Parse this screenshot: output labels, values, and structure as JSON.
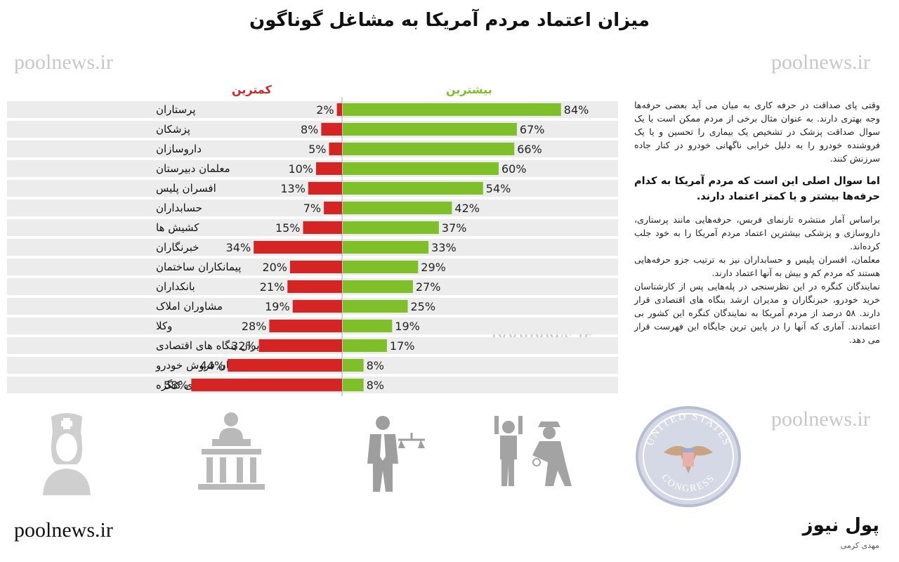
{
  "title": "میزان اعتماد مردم آمریکا به مشاغل گوناگون",
  "watermark": "poolnews.ir",
  "footer": {
    "site": "poolnews.ir",
    "brand": "پول نیوز",
    "author": "مهدی کرمی"
  },
  "colors": {
    "most": "#7fbf2a",
    "least": "#d42424",
    "row_band": "#ececec"
  },
  "chart_data": {
    "type": "bar",
    "legend": {
      "most": "بیشترین",
      "least": "کمترین"
    },
    "categories": [
      "پرستاران",
      "پزشکان",
      "داروسازان",
      "معلمان دبیرستان",
      "افسران پلیس",
      "حسابداران",
      "کشیش ها",
      "خبرنگاران",
      "پیمانکاران ساختمان",
      "بانکداران",
      "مشاوران املاک",
      "وکلا",
      "مدیران بنگاه های اقتصادی",
      "کارشناسان فروش خودرو",
      "اعضای کنگره"
    ],
    "series": [
      {
        "name": "بیشترین",
        "values": [
          84,
          67,
          66,
          60,
          54,
          42,
          37,
          33,
          29,
          27,
          25,
          19,
          17,
          8,
          8
        ]
      },
      {
        "name": "کمترین",
        "values": [
          2,
          8,
          5,
          10,
          13,
          7,
          15,
          34,
          20,
          21,
          19,
          28,
          32,
          44,
          58
        ]
      }
    ]
  },
  "side_text": {
    "p1": "وقتی پای صداقت در حرفه کاری به میان می آید بعضی حرفه‌ها وجه بهتری دارند. به عنوان مثال برخی از مردم ممکن است با یک سوال صداقت پزشک در تشخیص یک بیماری را تحسین و یا یک فروشنده خودرو را به دلیل خرابی ناگهانی خودرو در کنار جاده سرزنش کنند.",
    "question": "اما سوال اصلی این است که مردم آمریکا به کدام حرفه‌ها بیشتر و یا کمتر اعتماد دارند.",
    "p2": "براساس آمار منتشره تارنمای فربس، حرفه‌هایی مانند پرستاری، داروسازی و پزشکی بیشترین اعتماد مردم آمریکا را به خود جلب کرده‌اند.",
    "p3": "معلمان، افسران پلیس و حسابداران نیز به ترتیب جزو حرفه‌هایی هستند که مردم کم و بیش به آنها اعتماد دارند.",
    "p4": "نمایندگان کنگره در این نظرسنجی در پله‌هایی پس از کارشناسان خرید خودرو، خبرنگاران و مدیران ارشد بنگاه های اقتصادی قرار دارند. ۵۸ درصد از مردم آمریکا به نمایندگان کنگره این کشور بی اعتمادند. آماری که آنها را در پایین ترین جایگاه این فهرست قرار می دهد."
  },
  "icons": [
    "nurse-icon",
    "courthouse-icon",
    "lawyer-icon",
    "police-arrest-icon",
    "congress-seal-icon"
  ],
  "seal_text": {
    "top": "UNITED STATES",
    "bottom": "CONGRESS"
  }
}
